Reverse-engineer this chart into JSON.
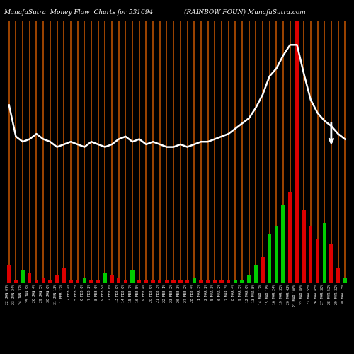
{
  "title_left": "MunafaSutra  Money Flow  Charts for 531694",
  "title_right": "(RAINBOW FOUN) MunafaSutra.com",
  "background_color": "#000000",
  "line_color": "#ffffff",
  "orange_bar_color": "#b85000",
  "n_bars": 50,
  "labels": [
    "22 JAN 07%",
    "23 JAN 24%",
    "24 JAN 32%",
    "25 JAN 9%",
    "26 JAN 4%",
    "29 JAN 5%",
    "30 JAN 6%",
    "31 JAN 13%",
    "1 FEB 12%",
    "2 FEB 4%",
    "5 FEB 5%",
    "6 FEB 6%",
    "7 FEB 2%",
    "8 FEB 0%",
    "9 FEB 9%",
    "12 FEB 6%",
    "13 FEB 8%",
    "14 FEB 6%",
    "15 FEB 7%",
    "16 FEB 5%",
    "19 FEB 4%",
    "20 FEB 6%",
    "21 FEB 3%",
    "22 FEB 1%",
    "23 FEB 2%",
    "26 FEB 3%",
    "27 FEB 2%",
    "28 FEB 4%",
    "1 MAR 3%",
    "2 MAR 2%",
    "5 MAR 3%",
    "6 MAR 2%",
    "7 MAR 3%",
    "8 MAR 4%",
    "9 MAR 5%",
    "12 MAR 6%",
    "13 MAR 8%",
    "14 MAR 12%",
    "15 MAR 18%",
    "16 MAR 24%",
    "19 MAR 35%",
    "20 MAR 42%",
    "21 MAR 100%",
    "22 MAR 80%",
    "23 MAR 55%",
    "26 MAR 45%",
    "27 MAR 38%",
    "28 MAR 52%",
    "29 MAR 32%",
    "30 MAR 15%"
  ],
  "bar_heights": [
    7,
    1,
    5,
    4,
    1,
    2,
    1,
    3,
    6,
    1,
    1,
    2,
    1,
    1,
    4,
    3,
    2,
    1,
    5,
    1,
    1,
    1,
    1,
    1,
    1,
    1,
    1,
    2,
    1,
    1,
    1,
    1,
    1,
    1,
    1,
    3,
    7,
    10,
    19,
    22,
    30,
    35,
    100,
    28,
    22,
    17,
    23,
    15,
    6,
    2
  ],
  "bar_colors": [
    "red",
    "red",
    "green",
    "red",
    "red",
    "red",
    "red",
    "red",
    "red",
    "red",
    "red",
    "green",
    "red",
    "red",
    "green",
    "red",
    "red",
    "red",
    "green",
    "red",
    "red",
    "red",
    "red",
    "red",
    "red",
    "red",
    "red",
    "green",
    "red",
    "red",
    "red",
    "red",
    "red",
    "green",
    "green",
    "green",
    "green",
    "red",
    "green",
    "green",
    "green",
    "red",
    "red",
    "red",
    "red",
    "red",
    "green",
    "red",
    "red",
    "green"
  ],
  "line_values": [
    68,
    56,
    54,
    55,
    57,
    55,
    54,
    52,
    53,
    54,
    53,
    52,
    54,
    53,
    52,
    53,
    55,
    56,
    54,
    55,
    53,
    54,
    53,
    52,
    52,
    53,
    52,
    53,
    54,
    54,
    55,
    56,
    57,
    59,
    61,
    63,
    67,
    72,
    79,
    82,
    87,
    91,
    91,
    80,
    70,
    65,
    62,
    60,
    57,
    55
  ],
  "figsize": [
    5.0,
    5.0
  ],
  "dpi": 100
}
